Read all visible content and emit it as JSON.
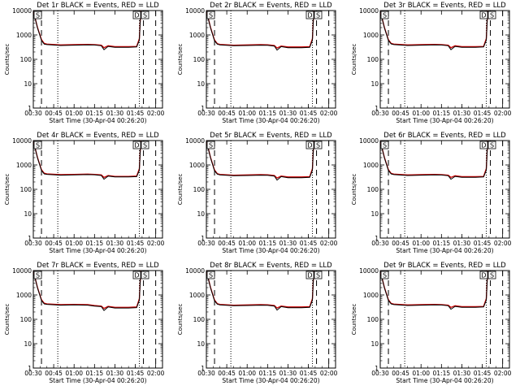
{
  "colors": {
    "events": "#000000",
    "lld": "#cc0000",
    "markers": "#000000"
  },
  "chart_data": [
    {
      "type": "line",
      "title": "Det 1r BLACK = Events, RED = LLD",
      "xlabel": "Start Time (30-Apr-04 00:26:20)",
      "ylabel": "Counts/sec",
      "y_scale": "log",
      "ylim": [
        1,
        10000
      ],
      "xlim": [
        "00:30",
        "02:05"
      ],
      "x_tick_labels": [
        "00:30",
        "00:45",
        "01:00",
        "01:15",
        "01:30",
        "01:45",
        "02:00"
      ],
      "y_tick_labels": [
        "1",
        "10",
        "100",
        "1000",
        "10000"
      ],
      "box_labels": [
        "S",
        "D",
        "S"
      ],
      "dashed_markers": [
        "00:36",
        "01:51",
        "02:00"
      ],
      "dotted_markers": [
        "00:48",
        "01:48"
      ],
      "x": [
        "00:30",
        "00:33",
        "00:36",
        "00:38",
        "00:40",
        "00:50",
        "01:00",
        "01:10",
        "01:15",
        "01:20",
        "01:22",
        "01:25",
        "01:30",
        "01:40",
        "01:46",
        "01:48",
        "01:49"
      ],
      "series": [
        {
          "name": "Events",
          "values": [
            10000,
            2000,
            600,
            420,
            400,
            370,
            380,
            390,
            385,
            360,
            250,
            340,
            310,
            310,
            320,
            600,
            10000
          ]
        },
        {
          "name": "LLD",
          "values": [
            10000,
            2100,
            650,
            450,
            420,
            390,
            400,
            410,
            400,
            380,
            300,
            360,
            330,
            330,
            340,
            700,
            10000
          ]
        }
      ]
    },
    {
      "type": "line",
      "title": "Det 2r BLACK = Events, RED = LLD",
      "xlabel": "Start Time (30-Apr-04 00:26:20)",
      "ylabel": "Counts/sec",
      "y_scale": "log",
      "ylim": [
        1,
        10000
      ],
      "xlim": [
        "00:30",
        "02:05"
      ],
      "x_tick_labels": [
        "00:30",
        "00:45",
        "01:00",
        "01:15",
        "01:30",
        "01:45",
        "02:00"
      ],
      "y_tick_labels": [
        "1",
        "10",
        "100",
        "1000",
        "10000"
      ],
      "box_labels": [
        "S",
        "D",
        "S"
      ],
      "dashed_markers": [
        "00:36",
        "01:51",
        "02:00"
      ],
      "dotted_markers": [
        "00:48",
        "01:48"
      ],
      "x": [
        "00:30",
        "00:33",
        "00:36",
        "00:38",
        "00:40",
        "00:50",
        "01:00",
        "01:10",
        "01:15",
        "01:20",
        "01:22",
        "01:25",
        "01:30",
        "01:40",
        "01:46",
        "01:48",
        "01:49"
      ],
      "series": [
        {
          "name": "Events",
          "values": [
            10000,
            2000,
            580,
            420,
            390,
            360,
            370,
            380,
            375,
            350,
            240,
            330,
            300,
            300,
            310,
            600,
            10000
          ]
        },
        {
          "name": "LLD",
          "values": [
            10000,
            2100,
            620,
            440,
            410,
            380,
            390,
            400,
            395,
            370,
            290,
            350,
            320,
            320,
            330,
            700,
            10000
          ]
        }
      ]
    },
    {
      "type": "line",
      "title": "Det 3r BLACK = Events, RED = LLD",
      "xlabel": "Start Time (30-Apr-04 00:26:20)",
      "ylabel": "Counts/sec",
      "y_scale": "log",
      "ylim": [
        1,
        10000
      ],
      "xlim": [
        "00:30",
        "02:05"
      ],
      "x_tick_labels": [
        "00:30",
        "00:45",
        "01:00",
        "01:15",
        "01:30",
        "01:45",
        "02:00"
      ],
      "y_tick_labels": [
        "1",
        "10",
        "100",
        "1000",
        "10000"
      ],
      "box_labels": [
        "S",
        "D",
        "S"
      ],
      "dashed_markers": [
        "00:36",
        "01:51",
        "02:00"
      ],
      "dotted_markers": [
        "00:48",
        "01:48"
      ],
      "x": [
        "00:30",
        "00:33",
        "00:36",
        "00:38",
        "00:40",
        "00:50",
        "01:00",
        "01:10",
        "01:15",
        "01:20",
        "01:22",
        "01:25",
        "01:30",
        "01:40",
        "01:46",
        "01:48",
        "01:49"
      ],
      "series": [
        {
          "name": "Events",
          "values": [
            10000,
            2000,
            600,
            430,
            400,
            370,
            380,
            390,
            385,
            360,
            250,
            340,
            310,
            310,
            320,
            600,
            10000
          ]
        },
        {
          "name": "LLD",
          "values": [
            10000,
            2100,
            640,
            450,
            420,
            390,
            400,
            410,
            400,
            380,
            300,
            360,
            330,
            330,
            340,
            700,
            10000
          ]
        }
      ]
    },
    {
      "type": "line",
      "title": "Det 4r BLACK = Events, RED = LLD",
      "xlabel": "Start Time (30-Apr-04 00:26:20)",
      "ylabel": "Counts/sec",
      "y_scale": "log",
      "ylim": [
        1,
        10000
      ],
      "xlim": [
        "00:30",
        "02:05"
      ],
      "x_tick_labels": [
        "00:30",
        "00:45",
        "01:00",
        "01:15",
        "01:30",
        "01:45",
        "02:00"
      ],
      "y_tick_labels": [
        "1",
        "10",
        "100",
        "1000",
        "10000"
      ],
      "box_labels": [
        "S",
        "D",
        "S"
      ],
      "dashed_markers": [
        "00:36",
        "01:51",
        "02:00"
      ],
      "dotted_markers": [
        "00:48",
        "01:48"
      ],
      "x": [
        "00:30",
        "00:33",
        "00:36",
        "00:38",
        "00:40",
        "00:50",
        "01:00",
        "01:10",
        "01:15",
        "01:20",
        "01:22",
        "01:25",
        "01:30",
        "01:40",
        "01:46",
        "01:48",
        "01:49"
      ],
      "series": [
        {
          "name": "Events",
          "values": [
            10000,
            2000,
            600,
            430,
            410,
            380,
            390,
            400,
            395,
            370,
            260,
            350,
            320,
            320,
            330,
            600,
            10000
          ]
        },
        {
          "name": "LLD",
          "values": [
            10000,
            2100,
            640,
            460,
            430,
            400,
            410,
            420,
            410,
            390,
            310,
            370,
            340,
            340,
            350,
            700,
            10000
          ]
        }
      ]
    },
    {
      "type": "line",
      "title": "Det 5r BLACK = Events, RED = LLD",
      "xlabel": "Start Time (30-Apr-04 00:26:20)",
      "ylabel": "Counts/sec",
      "y_scale": "log",
      "ylim": [
        1,
        10000
      ],
      "xlim": [
        "00:30",
        "02:05"
      ],
      "x_tick_labels": [
        "00:30",
        "00:45",
        "01:00",
        "01:15",
        "01:30",
        "01:45",
        "02:00"
      ],
      "y_tick_labels": [
        "1",
        "10",
        "100",
        "1000",
        "10000"
      ],
      "box_labels": [
        "S",
        "D",
        "S"
      ],
      "dashed_markers": [
        "00:36",
        "01:51",
        "02:00"
      ],
      "dotted_markers": [
        "00:48",
        "01:48"
      ],
      "x": [
        "00:30",
        "00:33",
        "00:36",
        "00:38",
        "00:40",
        "00:50",
        "01:00",
        "01:10",
        "01:15",
        "01:20",
        "01:22",
        "01:25",
        "01:30",
        "01:40",
        "01:46",
        "01:48",
        "01:49"
      ],
      "series": [
        {
          "name": "Events",
          "values": [
            10000,
            2000,
            580,
            420,
            390,
            360,
            370,
            380,
            375,
            350,
            240,
            330,
            300,
            300,
            310,
            600,
            10000
          ]
        },
        {
          "name": "LLD",
          "values": [
            10000,
            2100,
            620,
            440,
            410,
            380,
            390,
            400,
            395,
            370,
            290,
            350,
            320,
            320,
            330,
            700,
            10000
          ]
        }
      ]
    },
    {
      "type": "line",
      "title": "Det 6r BLACK = Events, RED = LLD",
      "xlabel": "Start Time (30-Apr-04 00:26:20)",
      "ylabel": "Counts/sec",
      "y_scale": "log",
      "ylim": [
        1,
        10000
      ],
      "xlim": [
        "00:30",
        "02:05"
      ],
      "x_tick_labels": [
        "00:30",
        "00:45",
        "01:00",
        "01:15",
        "01:30",
        "01:45",
        "02:00"
      ],
      "y_tick_labels": [
        "1",
        "10",
        "100",
        "1000",
        "10000"
      ],
      "box_labels": [
        "S",
        "D",
        "S"
      ],
      "dashed_markers": [
        "00:36",
        "01:51",
        "02:00"
      ],
      "dotted_markers": [
        "00:48",
        "01:48"
      ],
      "x": [
        "00:30",
        "00:33",
        "00:36",
        "00:38",
        "00:40",
        "00:50",
        "01:00",
        "01:10",
        "01:15",
        "01:20",
        "01:22",
        "01:25",
        "01:30",
        "01:40",
        "01:46",
        "01:48",
        "01:49"
      ],
      "series": [
        {
          "name": "Events",
          "values": [
            10000,
            2000,
            600,
            430,
            400,
            370,
            380,
            390,
            385,
            360,
            260,
            340,
            310,
            310,
            320,
            600,
            10000
          ]
        },
        {
          "name": "LLD",
          "values": [
            10000,
            2100,
            640,
            450,
            420,
            390,
            400,
            410,
            400,
            380,
            310,
            360,
            330,
            330,
            340,
            700,
            10000
          ]
        }
      ]
    },
    {
      "type": "line",
      "title": "Det 7r BLACK = Events, RED = LLD",
      "xlabel": "Start Time (30-Apr-04 00:26:20)",
      "ylabel": "Counts/sec",
      "y_scale": "log",
      "ylim": [
        1,
        10000
      ],
      "xlim": [
        "00:30",
        "02:05"
      ],
      "x_tick_labels": [
        "00:30",
        "00:45",
        "01:00",
        "01:15",
        "01:30",
        "01:45",
        "02:00"
      ],
      "y_tick_labels": [
        "1",
        "10",
        "100",
        "1000",
        "10000"
      ],
      "box_labels": [
        "S",
        "D",
        "S"
      ],
      "dashed_markers": [
        "00:36",
        "01:51",
        "02:00"
      ],
      "dotted_markers": [
        "00:48",
        "01:48"
      ],
      "x": [
        "00:30",
        "00:33",
        "00:36",
        "00:38",
        "00:40",
        "00:50",
        "01:00",
        "01:10",
        "01:15",
        "01:20",
        "01:22",
        "01:25",
        "01:30",
        "01:40",
        "01:46",
        "01:48",
        "01:49"
      ],
      "series": [
        {
          "name": "Events",
          "values": [
            10000,
            2000,
            600,
            430,
            410,
            380,
            390,
            380,
            350,
            330,
            230,
            320,
            290,
            290,
            300,
            600,
            10000
          ]
        },
        {
          "name": "LLD",
          "values": [
            10000,
            2100,
            640,
            460,
            430,
            400,
            410,
            400,
            370,
            350,
            280,
            340,
            310,
            310,
            320,
            700,
            10000
          ]
        }
      ]
    },
    {
      "type": "line",
      "title": "Det 8r BLACK = Events, RED = LLD",
      "xlabel": "Start Time (30-Apr-04 00:26:20)",
      "ylabel": "Counts/sec",
      "y_scale": "log",
      "ylim": [
        1,
        10000
      ],
      "xlim": [
        "00:30",
        "02:05"
      ],
      "x_tick_labels": [
        "00:30",
        "00:45",
        "01:00",
        "01:15",
        "01:30",
        "01:45",
        "02:00"
      ],
      "y_tick_labels": [
        "1",
        "10",
        "100",
        "1000",
        "10000"
      ],
      "box_labels": [
        "S",
        "D",
        "S"
      ],
      "dashed_markers": [
        "00:36",
        "01:51",
        "02:00"
      ],
      "dotted_markers": [
        "00:48",
        "01:48"
      ],
      "x": [
        "00:30",
        "00:33",
        "00:36",
        "00:38",
        "00:40",
        "00:50",
        "01:00",
        "01:10",
        "01:15",
        "01:20",
        "01:22",
        "01:25",
        "01:30",
        "01:40",
        "01:46",
        "01:48",
        "01:49"
      ],
      "series": [
        {
          "name": "Events",
          "values": [
            10000,
            2000,
            580,
            420,
            390,
            360,
            370,
            380,
            375,
            350,
            240,
            330,
            300,
            300,
            310,
            600,
            10000
          ]
        },
        {
          "name": "LLD",
          "values": [
            10000,
            2100,
            620,
            440,
            410,
            380,
            390,
            400,
            395,
            370,
            290,
            350,
            320,
            320,
            330,
            700,
            10000
          ]
        }
      ]
    },
    {
      "type": "line",
      "title": "Det 9r BLACK = Events, RED = LLD",
      "xlabel": "Start Time (30-Apr-04 00:26:20)",
      "ylabel": "Counts/sec",
      "y_scale": "log",
      "ylim": [
        1,
        10000
      ],
      "xlim": [
        "00:30",
        "02:05"
      ],
      "x_tick_labels": [
        "00:30",
        "00:45",
        "01:00",
        "01:15",
        "01:30",
        "01:45",
        "02:00"
      ],
      "y_tick_labels": [
        "1",
        "10",
        "100",
        "1000",
        "10000"
      ],
      "box_labels": [
        "S",
        "D",
        "S"
      ],
      "dashed_markers": [
        "00:36",
        "01:51",
        "02:00"
      ],
      "dotted_markers": [
        "00:48",
        "01:48"
      ],
      "x": [
        "00:30",
        "00:33",
        "00:36",
        "00:38",
        "00:40",
        "00:50",
        "01:00",
        "01:10",
        "01:15",
        "01:20",
        "01:22",
        "01:25",
        "01:30",
        "01:40",
        "01:46",
        "01:48",
        "01:49"
      ],
      "series": [
        {
          "name": "Events",
          "values": [
            10000,
            2000,
            600,
            430,
            400,
            370,
            380,
            390,
            385,
            360,
            260,
            340,
            310,
            310,
            320,
            600,
            10000
          ]
        },
        {
          "name": "LLD",
          "values": [
            10000,
            2100,
            640,
            450,
            420,
            390,
            400,
            410,
            400,
            380,
            310,
            360,
            330,
            330,
            340,
            700,
            10000
          ]
        }
      ]
    }
  ]
}
